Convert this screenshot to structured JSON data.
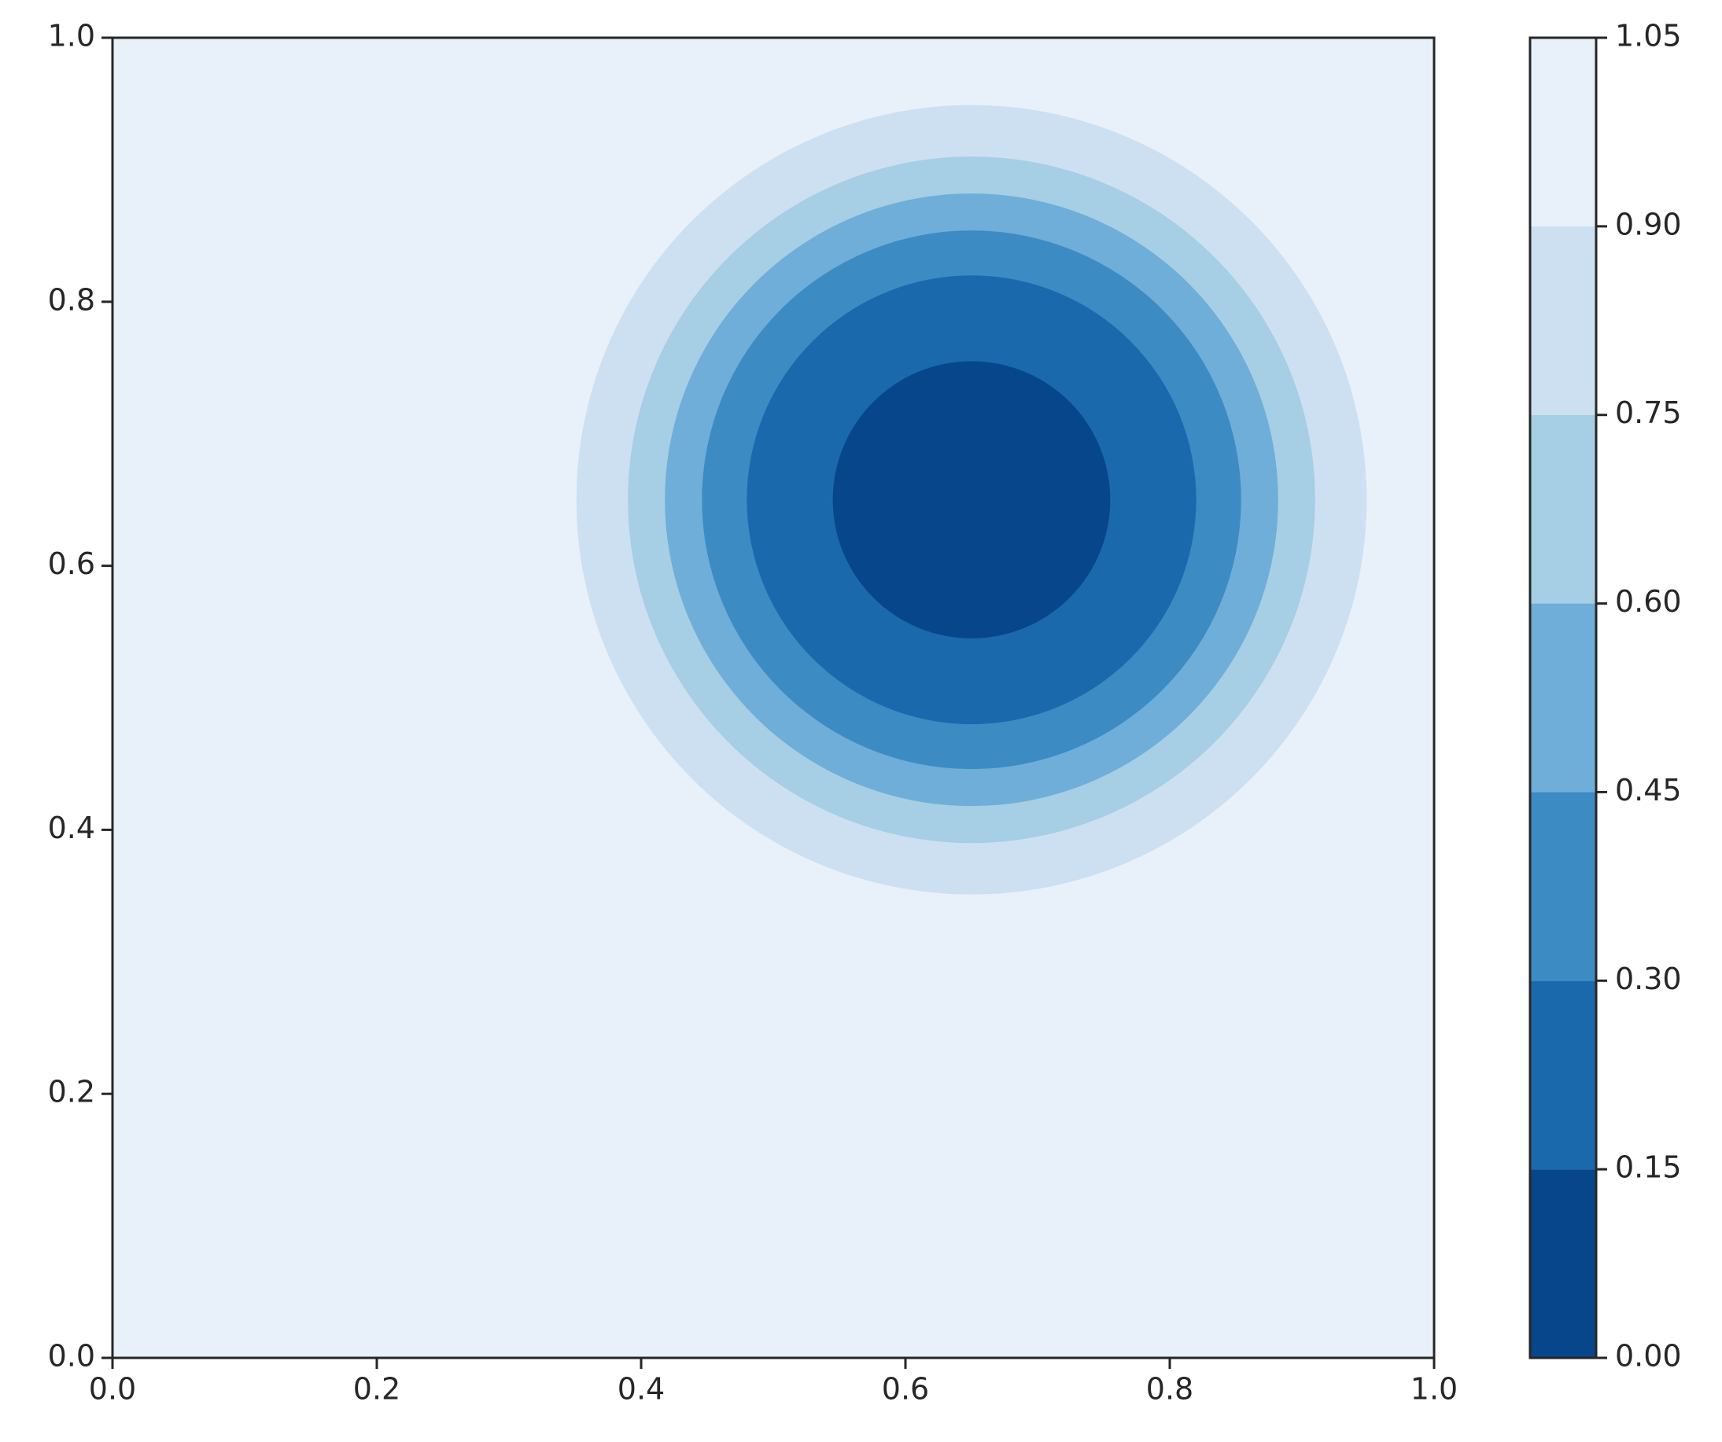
{
  "chart_data": {
    "type": "contour",
    "xlim": [
      0,
      1
    ],
    "ylim": [
      0,
      1
    ],
    "xticks": [
      {
        "value": 0,
        "label": "0.0"
      },
      0.2,
      0.4,
      0.6,
      0.8,
      {
        "value": 1,
        "label": "1.0"
      }
    ],
    "yticks": [
      {
        "value": 0,
        "label": "0.0"
      },
      0.2,
      0.4,
      0.6,
      0.8,
      {
        "value": 1,
        "label": "1.0"
      }
    ],
    "center": [
      0.65,
      0.65
    ],
    "radii": [
      0.105,
      0.17,
      0.204,
      0.232,
      0.26,
      0.299
    ],
    "colors": [
      "#08468b",
      "#1b69ad",
      "#3d8bc3",
      "#6eaed8",
      "#a6cee4",
      "#cde0f1",
      "#e8f1fa"
    ],
    "clim": [
      0,
      1.05
    ],
    "cticks": [
      {
        "value": 0,
        "label": "0.00"
      },
      0.15,
      {
        "value": 0.3,
        "label": "0.30"
      },
      0.45,
      {
        "value": 0.6,
        "label": "0.60"
      },
      0.75,
      {
        "value": 0.9,
        "label": "0.90"
      },
      1.05
    ]
  }
}
